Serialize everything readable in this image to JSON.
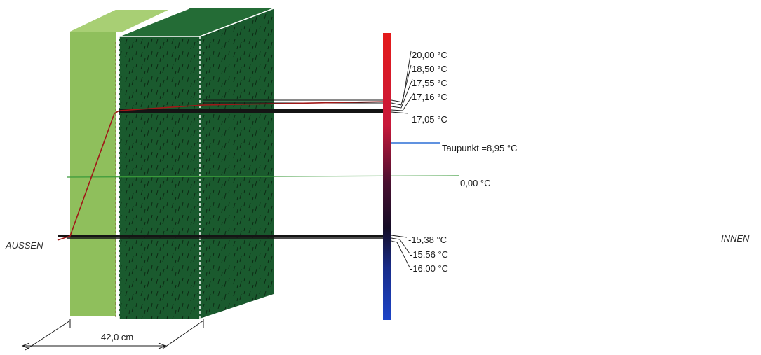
{
  "side_labels": {
    "outside": "AUSSEN",
    "inside": "INNEN"
  },
  "dimension": {
    "label": "42,0 cm"
  },
  "temperatures": {
    "inner": "20,00 °C",
    "surface_inner": "18,50 °C",
    "t3": "17,55 °C",
    "t4": "17,16 °C",
    "t5": "17,05 °C",
    "dew_point": "Taupunkt =8,95 °C",
    "zero": "0,00 °C",
    "t_minus_1": "-15,38 °C",
    "t_minus_2": "-15,56 °C",
    "outer": "-16,00 °C"
  },
  "colors": {
    "render_layer": "#8fbf5c",
    "insulation": "#1a5a2e",
    "profile_line": "#a01818",
    "dew_point_line": "#2b6fd6",
    "zero_line": "#3a9a3a",
    "scale_warm": "#e01818",
    "scale_cold": "#1840c8"
  }
}
